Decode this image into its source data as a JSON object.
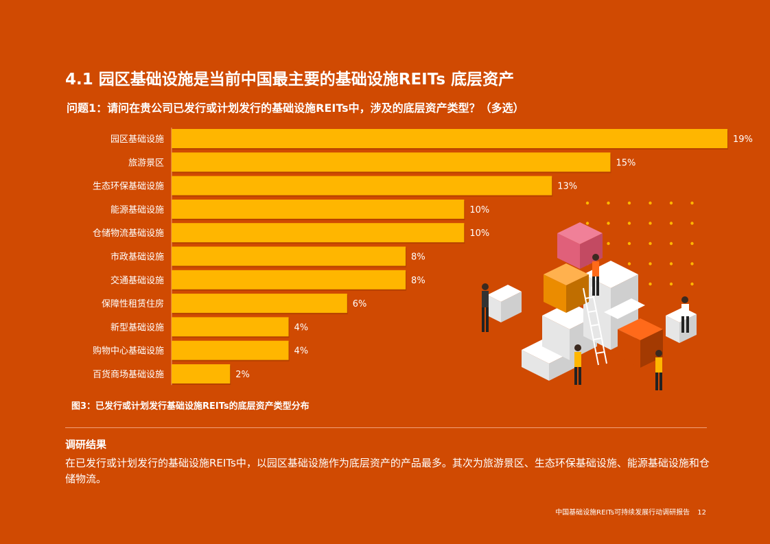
{
  "page": {
    "title": "4.1 园区基础设施是当前中国最主要的基础设施REITs 底层资产",
    "question": "问题1：请问在贵公司已发行或计划发行的基础设施REITs中，涉及的底层资产类型？（多选）",
    "figure_caption": "图3：已发行或计划发行基础设施REITs的底层资产类型分布",
    "findings_title": "调研结果",
    "findings_body": "在已发行或计划发行的基础设施REITs中，以园区基础设施作为底层资产的产品最多。其次为旅游景区、生态环保基础设施、能源基础设施和仓储物流。",
    "footer_text": "中国基础设施REITs可持续发展行动调研报告",
    "page_number": "12"
  },
  "colors": {
    "background": "#D04A02",
    "bar": "#FFB600",
    "bar_shadow": "#A33A02",
    "text": "#FFFFFF"
  },
  "chart_data": {
    "type": "bar",
    "orientation": "horizontal",
    "categories": [
      "园区基础设施",
      "旅游景区",
      "生态环保基础设施",
      "能源基础设施",
      "仓储物流基础设施",
      "市政基础设施",
      "交通基础设施",
      "保障性租赁住房",
      "新型基础设施",
      "购物中心基础设施",
      "百货商场基础设施"
    ],
    "values": [
      19,
      15,
      13,
      10,
      10,
      8,
      8,
      6,
      4,
      4,
      2
    ],
    "value_labels": [
      "19%",
      "15%",
      "13%",
      "10%",
      "10%",
      "8%",
      "8%",
      "6%",
      "4%",
      "4%",
      "2%"
    ],
    "unit": "%",
    "xlim": [
      0,
      19
    ],
    "grid": false,
    "legend": false
  }
}
